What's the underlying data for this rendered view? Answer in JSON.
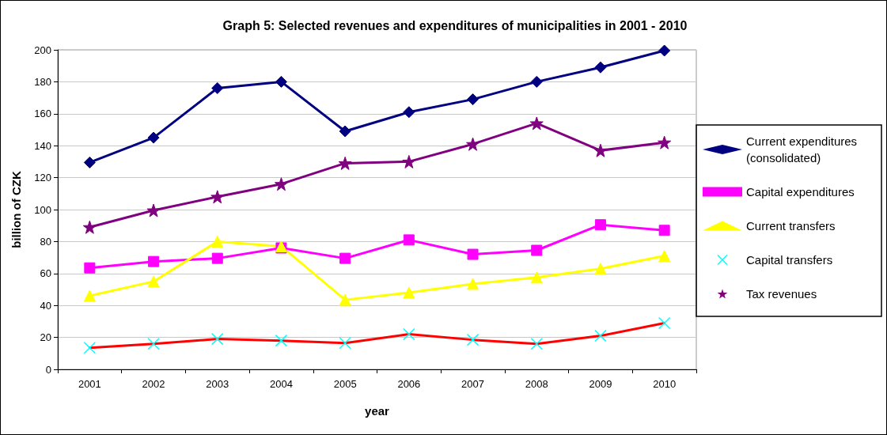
{
  "chart_data": {
    "type": "line",
    "title": "Graph 5: Selected revenues and expenditures of municipalities in 2001 - 2010",
    "xlabel": "year",
    "ylabel": "billion of CZK",
    "categories": [
      "2001",
      "2002",
      "2003",
      "2004",
      "2005",
      "2006",
      "2007",
      "2008",
      "2009",
      "2010"
    ],
    "ylim": [
      0,
      200
    ],
    "yticks": [
      0,
      20,
      40,
      60,
      80,
      100,
      120,
      140,
      160,
      180,
      200
    ],
    "grid": "y",
    "legend": "right",
    "line_style": "solid",
    "series": [
      {
        "name": "Current expenditures (consolidated)",
        "color": "#000080",
        "marker": "diamond",
        "values": [
          129.5,
          145,
          176,
          180,
          149,
          161,
          169,
          180,
          189,
          199.5
        ]
      },
      {
        "name": "Capital expenditures",
        "color": "#ff00ff",
        "marker": "square",
        "values": [
          63.5,
          67.5,
          69.5,
          76,
          69.5,
          81,
          72,
          74.5,
          90.5,
          87
        ]
      },
      {
        "name": "Current transfers",
        "color": "#ffff00",
        "marker": "triangle",
        "values": [
          46,
          55,
          80,
          77,
          43.5,
          48,
          53.5,
          57.5,
          63,
          71
        ]
      },
      {
        "name": "Capital transfers",
        "color": "#ff0000",
        "marker": "cross",
        "colors": [
          "#00ffff",
          "#00ffff",
          "#00ffff",
          "#00ffff",
          "#00ffff",
          "#00ffff",
          "#00ffff",
          "#00ffff",
          "#00ffff",
          "#00ffff"
        ],
        "values": [
          13.5,
          16,
          19,
          18,
          16.5,
          22,
          18.5,
          16,
          21,
          29
        ]
      },
      {
        "name": "Tax revenues",
        "color": "#800080",
        "marker": "star",
        "values": [
          89,
          99.5,
          108,
          116,
          129,
          130,
          141,
          154,
          137,
          142
        ]
      }
    ]
  }
}
